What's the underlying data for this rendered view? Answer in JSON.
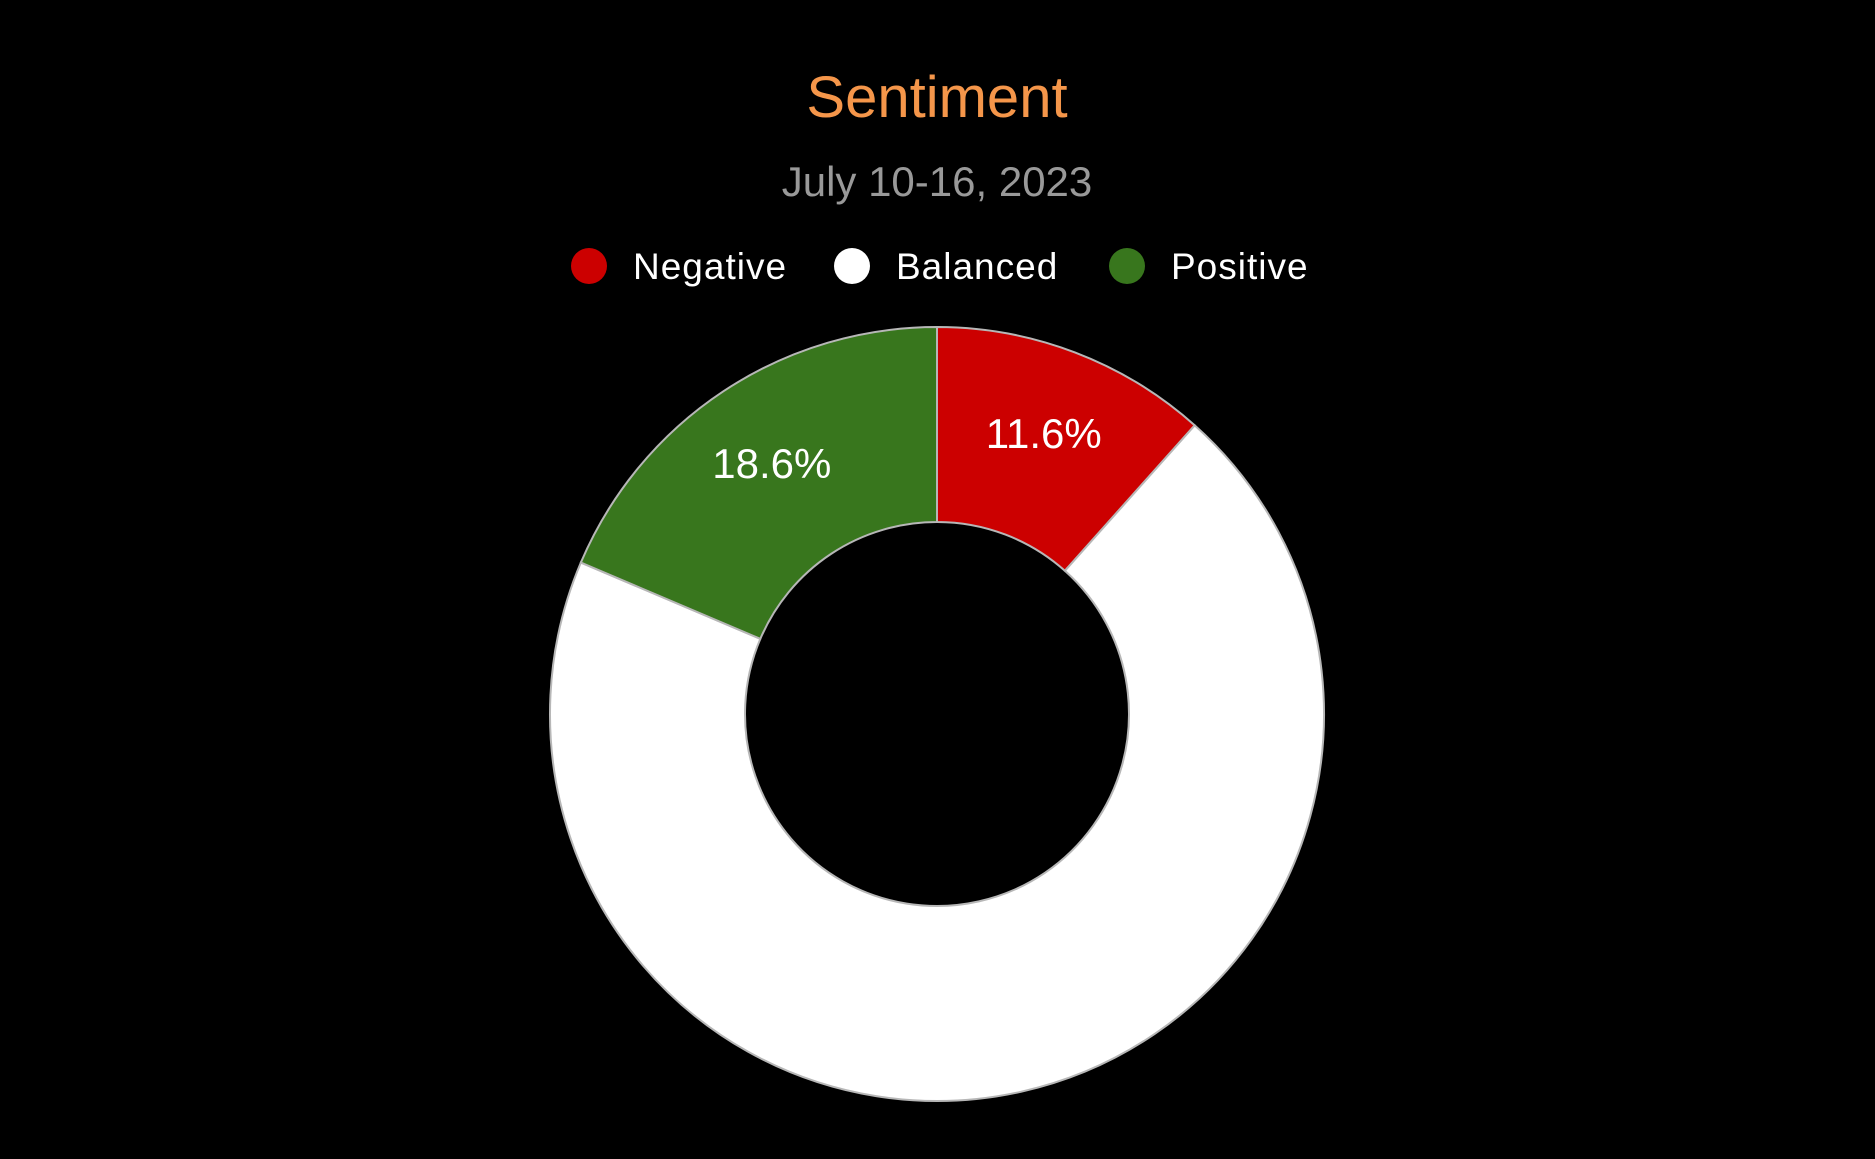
{
  "chart_data": {
    "type": "pie",
    "title": "Sentiment",
    "subtitle": "July 10-16, 2023",
    "donut": true,
    "legend_position": "top",
    "series": [
      {
        "name": "Negative",
        "value": 11.6,
        "label": "11.6%",
        "color": "#cc0000",
        "show_label": true
      },
      {
        "name": "Balanced",
        "value": 69.8,
        "label": "",
        "color": "#ffffff",
        "show_label": false
      },
      {
        "name": "Positive",
        "value": 18.6,
        "label": "18.6%",
        "color": "#38761d",
        "show_label": true
      }
    ]
  },
  "colors": {
    "background": "#000000",
    "title": "#f5964a",
    "subtitle": "#999999",
    "legend_text": "#ffffff",
    "slice_label": "#ffffff",
    "slice_border": "#b7b7b7"
  }
}
